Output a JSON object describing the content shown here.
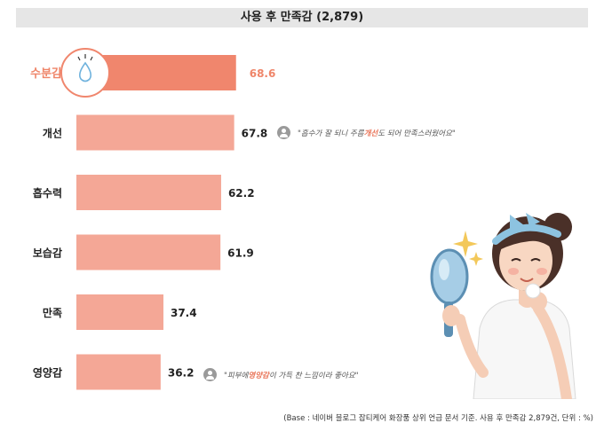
{
  "title": "사용 후 만족감 (2,879)",
  "chart_data": {
    "type": "bar",
    "orientation": "horizontal",
    "categories": [
      "수분감",
      "개선",
      "흡수력",
      "보습감",
      "만족",
      "영양감"
    ],
    "values": [
      68.6,
      67.8,
      62.2,
      61.9,
      37.4,
      36.2
    ],
    "value_labels": [
      "68.6",
      "67.8",
      "62.2",
      "61.9",
      "37.4",
      "36.2"
    ],
    "highlight_index": 0,
    "unit": "%",
    "xlim": [
      0,
      100
    ]
  },
  "colors": {
    "bar": "#f4a796",
    "bar_highlight": "#f0866d",
    "highlight_text": "#ef8569",
    "drop_icon": "#6fb2dd"
  },
  "quotes": [
    {
      "before": "\"흡수가 잘 되니 주름",
      "highlight": "개선",
      "after": "도 되어 만족스러웠어요\""
    },
    {
      "before": "\"피부에 ",
      "highlight": "영양감",
      "after": "이 가득 찬 느낌이라 좋아요\""
    }
  ],
  "footnote": "(Base : 네이버 블로그 잡티케어 화장품 상위 언급 문서 기준. 사용 후 만족감 2,879건, 단위 : %)",
  "icons": {
    "drop": "water-drop-icon",
    "avatar": "user-avatar-icon",
    "illustration": "woman-with-mirror-illustration"
  }
}
